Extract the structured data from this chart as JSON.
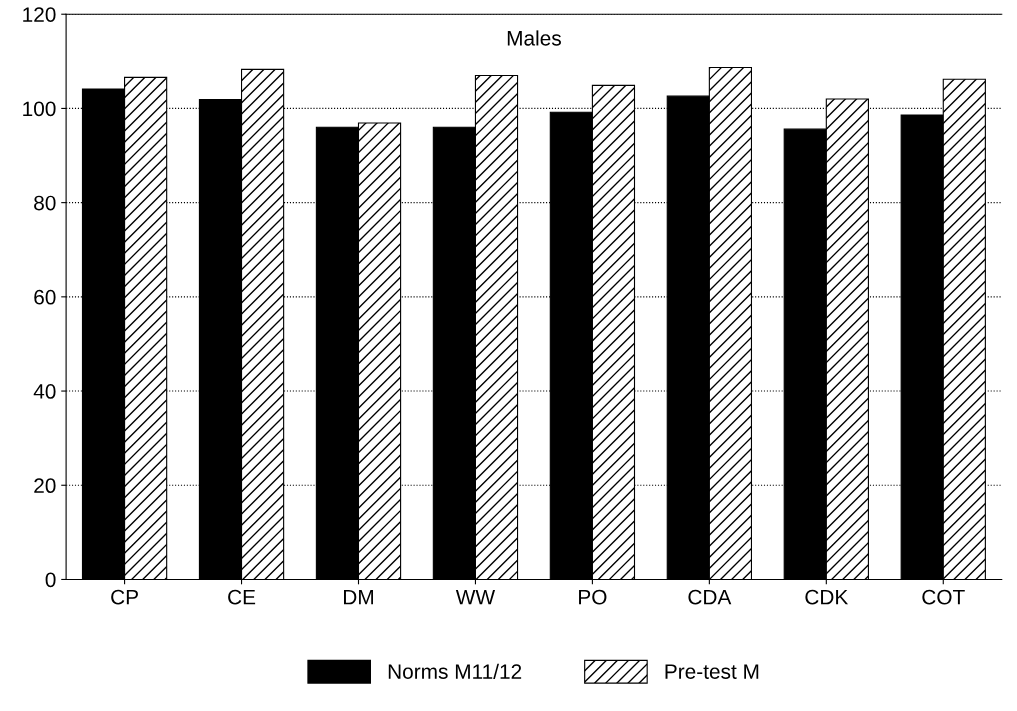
{
  "chart_data": {
    "type": "bar",
    "title": "Males",
    "categories": [
      "CP",
      "CE",
      "DM",
      "WW",
      "PO",
      "CDA",
      "CDK",
      "COT"
    ],
    "series": [
      {
        "name": "Norms M11/12",
        "color": "#000000",
        "values": [
          104.1,
          101.9,
          96.0,
          96.0,
          99.2,
          102.6,
          95.6,
          98.6
        ]
      },
      {
        "name": "Pre-test M",
        "color": "#000000",
        "values": [
          106.6,
          108.3,
          96.9,
          107.0,
          104.9,
          108.7,
          102.0,
          106.2
        ]
      }
    ],
    "ylim": [
      0,
      120
    ],
    "yticks": [
      0,
      20,
      40,
      60,
      80,
      100,
      120
    ],
    "grid": "y",
    "legend": "bottom"
  }
}
